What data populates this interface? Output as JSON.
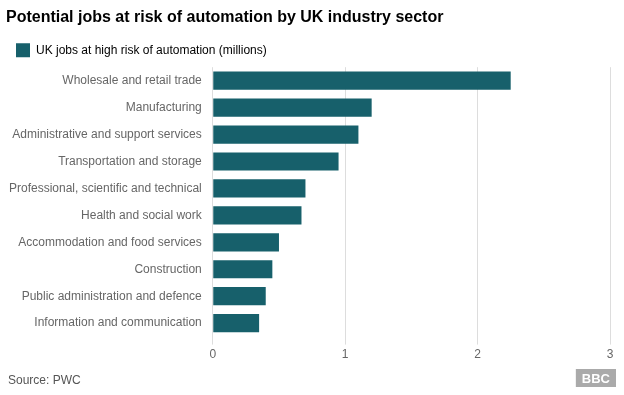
{
  "chart_data": {
    "type": "bar",
    "orientation": "horizontal",
    "title": "Potential jobs at risk of automation by UK industry sector",
    "categories": [
      "Wholesale and retail trade",
      "Manufacturing",
      "Administrative and support services",
      "Transportation and storage",
      "Professional, scientific and technical",
      "Health and social work",
      "Accommodation and food services",
      "Construction",
      "Public administration and defence",
      "Information and communication"
    ],
    "series": [
      {
        "name": "UK jobs at high risk of automation (millions)",
        "color": "#17606b",
        "values": [
          2.25,
          1.2,
          1.1,
          0.95,
          0.7,
          0.67,
          0.5,
          0.45,
          0.4,
          0.35
        ]
      }
    ],
    "xlim": [
      0,
      3
    ],
    "xticks": [
      0,
      1,
      2,
      3
    ],
    "grid": true,
    "legend": "top left",
    "annotations": [
      "Source: PWC",
      "BBC"
    ]
  }
}
